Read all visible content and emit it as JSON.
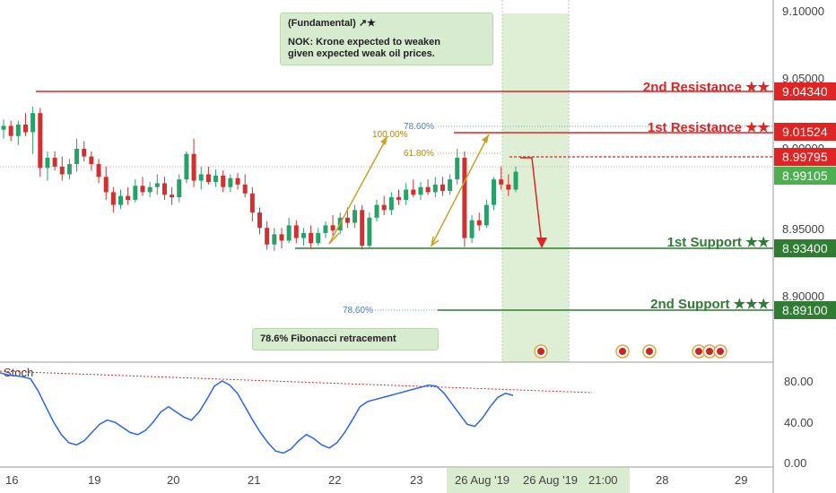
{
  "chart_data": {
    "type": "candlestick",
    "price_axis": {
      "ticks": [
        "9.10000",
        "9.05000",
        "9.00000",
        "8.95000",
        "8.90000"
      ]
    },
    "stoch_axis": {
      "ticks": [
        "80.00",
        "40.00",
        "0.00"
      ]
    },
    "time_axis": {
      "ticks": [
        "16",
        "19",
        "20",
        "21",
        "22",
        "23",
        "26 Aug '19",
        "26 Aug '19",
        "21:00",
        "28",
        "29"
      ]
    },
    "levels": [
      {
        "label": "2nd Resistance ★★",
        "price": 9.0434,
        "tag": "9.04340",
        "color": "#e02424"
      },
      {
        "label": "1st Resistance ★★",
        "price": 9.01524,
        "tag": "9.01524",
        "color": "#e02424"
      },
      {
        "label": "1st Support ★★",
        "price": 8.934,
        "tag": "8.93400",
        "color": "#2e7d32"
      },
      {
        "label": "2nd Support ★★★",
        "price": 8.891,
        "tag": "8.89100",
        "color": "#2e7d32"
      }
    ],
    "current_price_tags": [
      {
        "tag": "8.99795",
        "price": 8.99795,
        "color": "#e02424"
      },
      {
        "tag": "8.99105",
        "price": 8.99105,
        "color": "#4caf50"
      }
    ],
    "fib_labels": [
      {
        "text": "100.00%",
        "color": "#b8860b"
      },
      {
        "text": "78.60%",
        "color": "#4a7fc1"
      },
      {
        "text": "61.80%",
        "color": "#b8860b"
      },
      {
        "text": "78.60%",
        "color": "#4a7fc1"
      }
    ],
    "indicator_label": "Stoch",
    "candles": [
      [
        9.027,
        9.035,
        9.02,
        9.03
      ],
      [
        9.03,
        9.034,
        9.018,
        9.022
      ],
      [
        9.022,
        9.034,
        9.015,
        9.031
      ],
      [
        9.031,
        9.04,
        9.022,
        9.025
      ],
      [
        9.025,
        9.045,
        9.008,
        9.04
      ],
      [
        9.04,
        9.044,
        8.99,
        8.997
      ],
      [
        8.997,
        9.01,
        8.987,
        9.005
      ],
      [
        9.005,
        9.01,
        8.995,
        8.998
      ],
      [
        8.998,
        9.006,
        8.987,
        8.992
      ],
      [
        8.992,
        9.004,
        8.988,
        9.0
      ],
      [
        9.0,
        9.02,
        8.994,
        9.012
      ],
      [
        9.012,
        9.018,
        9.002,
        9.006
      ],
      [
        9.006,
        9.01,
        8.995,
        9.0
      ],
      [
        9.0,
        9.004,
        8.985,
        8.99
      ],
      [
        8.99,
        8.998,
        8.972,
        8.978
      ],
      [
        8.978,
        8.982,
        8.962,
        8.968
      ],
      [
        8.968,
        8.98,
        8.965,
        8.975
      ],
      [
        8.975,
        8.982,
        8.968,
        8.972
      ],
      [
        8.972,
        8.988,
        8.97,
        8.983
      ],
      [
        8.983,
        8.99,
        8.975,
        8.978
      ],
      [
        8.978,
        8.986,
        8.974,
        8.982
      ],
      [
        8.982,
        8.992,
        8.976,
        8.985
      ],
      [
        8.985,
        8.99,
        8.972,
        8.976
      ],
      [
        8.976,
        8.982,
        8.968,
        8.974
      ],
      [
        8.974,
        8.992,
        8.97,
        8.988
      ],
      [
        8.988,
        9.01,
        8.985,
        9.008
      ],
      [
        9.008,
        9.02,
        8.982,
        8.987
      ],
      [
        8.987,
        8.998,
        8.98,
        8.992
      ],
      [
        8.992,
        8.998,
        8.984,
        8.986
      ],
      [
        8.986,
        8.996,
        8.982,
        8.991
      ],
      [
        8.991,
        8.995,
        8.978,
        8.982
      ],
      [
        8.982,
        8.992,
        8.978,
        8.989
      ],
      [
        8.989,
        8.993,
        8.98,
        8.984
      ],
      [
        8.984,
        8.992,
        8.974,
        8.977
      ],
      [
        8.977,
        8.982,
        8.955,
        8.962
      ],
      [
        8.962,
        8.966,
        8.945,
        8.95
      ],
      [
        8.95,
        8.955,
        8.933,
        8.937
      ],
      [
        8.937,
        8.95,
        8.932,
        8.945
      ],
      [
        8.945,
        8.95,
        8.934,
        8.94
      ],
      [
        8.94,
        8.958,
        8.938,
        8.952
      ],
      [
        8.952,
        8.956,
        8.938,
        8.942
      ],
      [
        8.942,
        8.95,
        8.936,
        8.946
      ],
      [
        8.946,
        8.952,
        8.934,
        8.938
      ],
      [
        8.938,
        8.95,
        8.936,
        8.946
      ],
      [
        8.946,
        8.955,
        8.942,
        8.952
      ],
      [
        8.952,
        8.96,
        8.944,
        8.948
      ],
      [
        8.948,
        8.962,
        8.945,
        8.958
      ],
      [
        8.958,
        8.966,
        8.95,
        8.954
      ],
      [
        8.954,
        8.968,
        8.95,
        8.964
      ],
      [
        8.964,
        8.968,
        8.933,
        8.936
      ],
      [
        8.936,
        8.962,
        8.934,
        8.958
      ],
      [
        8.958,
        8.972,
        8.955,
        8.968
      ],
      [
        8.968,
        8.975,
        8.96,
        8.964
      ],
      [
        8.964,
        8.978,
        8.96,
        8.974
      ],
      [
        8.974,
        8.98,
        8.968,
        8.972
      ],
      [
        8.972,
        8.985,
        8.968,
        8.98
      ],
      [
        8.98,
        8.988,
        8.974,
        8.976
      ],
      [
        8.976,
        8.986,
        8.972,
        8.982
      ],
      [
        8.982,
        8.988,
        8.976,
        8.978
      ],
      [
        8.978,
        8.99,
        8.974,
        8.984
      ],
      [
        8.984,
        8.99,
        8.975,
        8.979
      ],
      [
        8.979,
        8.992,
        8.976,
        8.988
      ],
      [
        8.988,
        9.012,
        8.984,
        9.005
      ],
      [
        9.005,
        9.01,
        8.935,
        8.942
      ],
      [
        8.942,
        8.96,
        8.938,
        8.956
      ],
      [
        8.956,
        8.962,
        8.948,
        8.952
      ],
      [
        8.952,
        8.972,
        8.95,
        8.968
      ],
      [
        8.968,
        8.99,
        8.964,
        8.988
      ],
      [
        8.988,
        8.998,
        8.98,
        8.984
      ],
      [
        8.984,
        8.992,
        8.975,
        8.98
      ],
      [
        8.98,
        8.998,
        8.978,
        8.994
      ]
    ],
    "stoch": [
      88,
      86,
      85,
      84,
      82,
      70,
      55,
      40,
      28,
      20,
      18,
      22,
      30,
      38,
      42,
      40,
      35,
      30,
      28,
      32,
      40,
      50,
      55,
      50,
      45,
      42,
      50,
      62,
      75,
      80,
      76,
      68,
      55,
      42,
      30,
      20,
      12,
      10,
      14,
      22,
      28,
      24,
      18,
      15,
      20,
      30,
      42,
      55,
      60,
      62,
      64,
      66,
      68,
      70,
      72,
      74,
      76,
      75,
      68,
      58,
      48,
      38,
      36,
      44,
      55,
      64,
      68,
      66
    ]
  }
}
